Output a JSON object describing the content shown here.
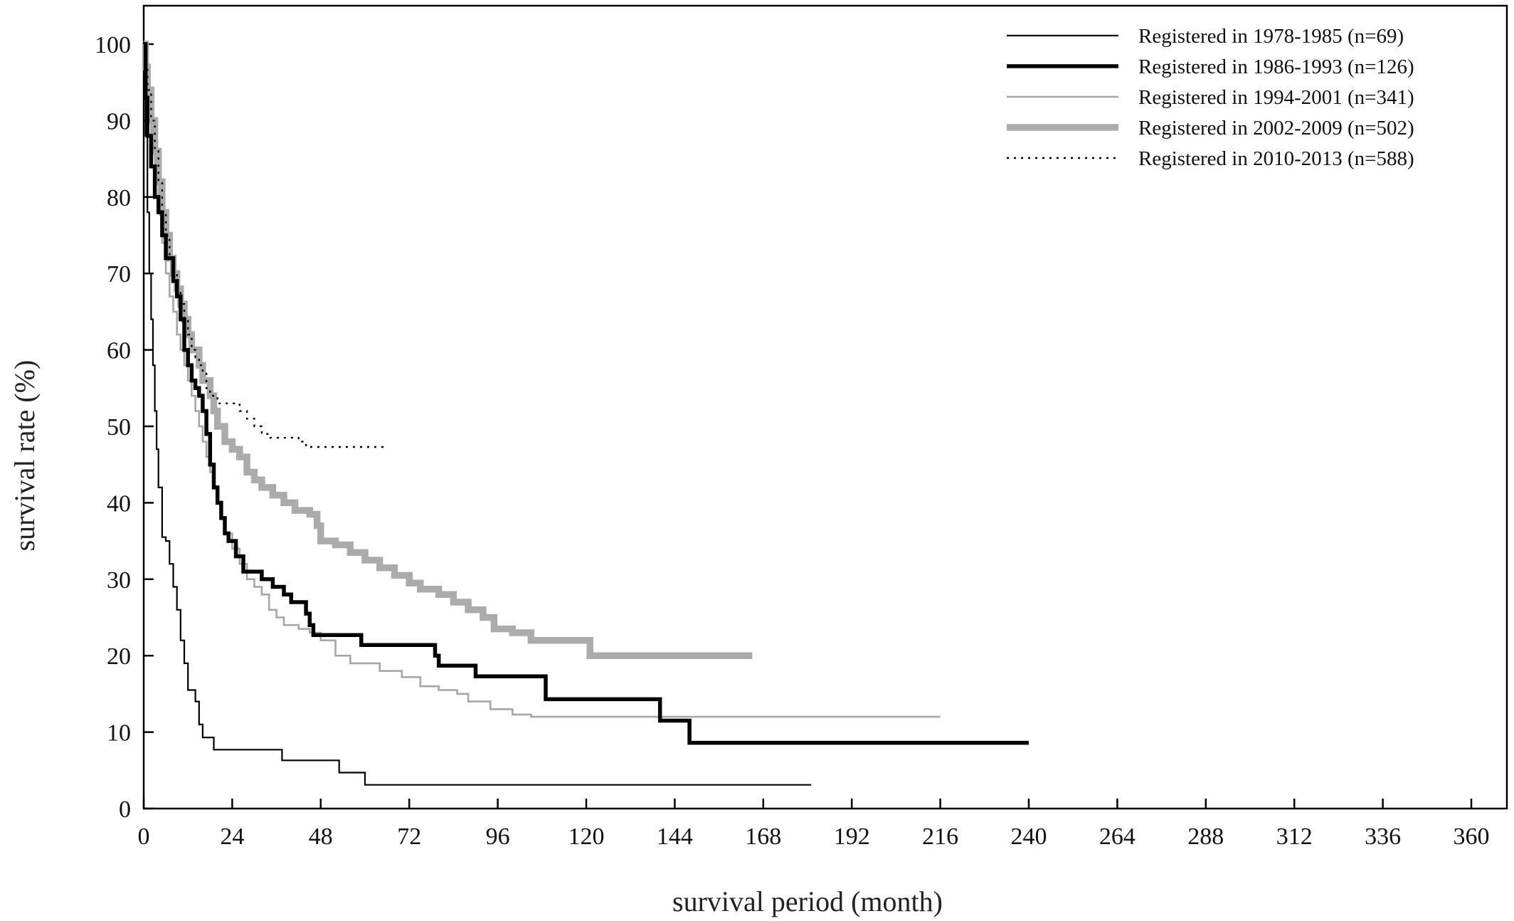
{
  "chart_data": {
    "type": "line",
    "subtype": "kaplan-meier-step",
    "title": "",
    "xlabel": "survival period (month)",
    "ylabel": "survival rate (%)",
    "xlim": [
      0,
      366
    ],
    "ylim": [
      0,
      105
    ],
    "x_ticks": [
      0,
      24,
      48,
      72,
      96,
      120,
      144,
      168,
      192,
      216,
      240,
      264,
      288,
      312,
      336,
      360
    ],
    "y_ticks": [
      0,
      10,
      20,
      30,
      40,
      50,
      60,
      70,
      80,
      90,
      100
    ],
    "grid": false,
    "legend_position": "top-right",
    "series": [
      {
        "name": "Registered in 1978-1985 (n=69)",
        "style": "thin-black",
        "color": "#000000",
        "points": [
          [
            0,
            100
          ],
          [
            0.5,
            88
          ],
          [
            1,
            78
          ],
          [
            1.5,
            70
          ],
          [
            2,
            64
          ],
          [
            2.5,
            58
          ],
          [
            3,
            52
          ],
          [
            3.5,
            47
          ],
          [
            4,
            42
          ],
          [
            5,
            35.5
          ],
          [
            6,
            35
          ],
          [
            7,
            32
          ],
          [
            8,
            29
          ],
          [
            9,
            26
          ],
          [
            10,
            22
          ],
          [
            11,
            19
          ],
          [
            12,
            15.5
          ],
          [
            14,
            14
          ],
          [
            15,
            11
          ],
          [
            16,
            9.3
          ],
          [
            18,
            9.3
          ],
          [
            19,
            7.7
          ],
          [
            37,
            7.7
          ],
          [
            37.5,
            6.3
          ],
          [
            52,
            6.3
          ],
          [
            53,
            4.7
          ],
          [
            59,
            4.7
          ],
          [
            60,
            3.1
          ],
          [
            181,
            3.1
          ]
        ]
      },
      {
        "name": "Registered in 1986-1993 (n=126)",
        "style": "thick-black",
        "color": "#000000",
        "points": [
          [
            0,
            100
          ],
          [
            0.5,
            93
          ],
          [
            1,
            88
          ],
          [
            2,
            84
          ],
          [
            3,
            80
          ],
          [
            4,
            78
          ],
          [
            5,
            75
          ],
          [
            6,
            72
          ],
          [
            8,
            69
          ],
          [
            9,
            67
          ],
          [
            10,
            64
          ],
          [
            11,
            60
          ],
          [
            12,
            58
          ],
          [
            13,
            56
          ],
          [
            14,
            55
          ],
          [
            15,
            54
          ],
          [
            16,
            52
          ],
          [
            17,
            49
          ],
          [
            18,
            45
          ],
          [
            19,
            42
          ],
          [
            20,
            40
          ],
          [
            21,
            38
          ],
          [
            22,
            36
          ],
          [
            23,
            35
          ],
          [
            25,
            33
          ],
          [
            27,
            31
          ],
          [
            31,
            31
          ],
          [
            32,
            30
          ],
          [
            35,
            29
          ],
          [
            37,
            29
          ],
          [
            38,
            28
          ],
          [
            40,
            27
          ],
          [
            43,
            27
          ],
          [
            44,
            25.5
          ],
          [
            45,
            24
          ],
          [
            46,
            22.7
          ],
          [
            58,
            22.7
          ],
          [
            59,
            21.4
          ],
          [
            78,
            21.4
          ],
          [
            79,
            20
          ],
          [
            80,
            18.7
          ],
          [
            89,
            18.7
          ],
          [
            90,
            17.3
          ],
          [
            108,
            17.3
          ],
          [
            109,
            14.3
          ],
          [
            139,
            14.3
          ],
          [
            140,
            11.5
          ],
          [
            147,
            11.5
          ],
          [
            148,
            8.6
          ],
          [
            240,
            8.6
          ]
        ]
      },
      {
        "name": "Registered in 1994-2001 (n=341)",
        "style": "thin-gray",
        "color": "#a6a6a6",
        "points": [
          [
            0,
            100
          ],
          [
            0.5,
            95
          ],
          [
            1,
            90
          ],
          [
            2,
            86
          ],
          [
            3,
            82
          ],
          [
            4,
            78
          ],
          [
            5,
            74
          ],
          [
            6,
            70
          ],
          [
            7,
            67
          ],
          [
            8,
            65
          ],
          [
            9,
            62
          ],
          [
            10,
            60
          ],
          [
            11,
            58
          ],
          [
            12,
            56
          ],
          [
            13,
            54
          ],
          [
            14,
            52
          ],
          [
            15,
            50
          ],
          [
            16,
            48
          ],
          [
            17,
            46
          ],
          [
            18,
            44
          ],
          [
            19,
            42
          ],
          [
            20,
            40
          ],
          [
            21,
            38
          ],
          [
            22,
            36
          ],
          [
            24,
            34
          ],
          [
            26,
            32
          ],
          [
            28,
            30
          ],
          [
            30,
            29
          ],
          [
            32,
            28
          ],
          [
            34,
            26
          ],
          [
            36,
            25
          ],
          [
            38,
            24
          ],
          [
            42,
            23.5
          ],
          [
            45,
            23
          ],
          [
            48,
            22
          ],
          [
            52,
            20
          ],
          [
            56,
            19
          ],
          [
            64,
            18
          ],
          [
            70,
            17.2
          ],
          [
            75,
            16
          ],
          [
            80,
            15.5
          ],
          [
            85,
            15
          ],
          [
            88,
            14
          ],
          [
            94,
            13
          ],
          [
            100,
            12.3
          ],
          [
            105,
            12
          ],
          [
            216,
            12
          ]
        ]
      },
      {
        "name": "Registered in 2002-2009 (n=502)",
        "style": "thick-gray",
        "color": "#ababab",
        "points": [
          [
            0,
            100
          ],
          [
            0.5,
            97
          ],
          [
            1,
            94
          ],
          [
            2,
            90
          ],
          [
            3,
            86
          ],
          [
            4,
            82
          ],
          [
            5,
            78
          ],
          [
            6,
            75
          ],
          [
            7,
            72
          ],
          [
            8,
            70
          ],
          [
            9,
            68
          ],
          [
            10,
            66
          ],
          [
            11,
            64
          ],
          [
            12,
            62
          ],
          [
            13,
            60
          ],
          [
            15,
            58
          ],
          [
            16,
            56
          ],
          [
            18,
            54
          ],
          [
            19,
            52
          ],
          [
            20,
            50
          ],
          [
            22,
            48
          ],
          [
            24,
            47
          ],
          [
            26,
            46
          ],
          [
            28,
            44
          ],
          [
            30,
            43
          ],
          [
            32,
            42
          ],
          [
            35,
            41
          ],
          [
            38,
            40
          ],
          [
            41,
            39
          ],
          [
            45,
            38.5
          ],
          [
            47,
            37
          ],
          [
            48,
            35
          ],
          [
            52,
            34.5
          ],
          [
            56,
            33.5
          ],
          [
            60,
            32.5
          ],
          [
            64,
            31.5
          ],
          [
            68,
            30.5
          ],
          [
            72,
            29.5
          ],
          [
            75,
            28.7
          ],
          [
            80,
            28
          ],
          [
            84,
            27
          ],
          [
            88,
            26
          ],
          [
            92,
            25
          ],
          [
            95,
            23.5
          ],
          [
            100,
            23
          ],
          [
            105,
            22
          ],
          [
            120,
            22
          ],
          [
            121,
            20
          ],
          [
            165,
            20
          ]
        ]
      },
      {
        "name": "Registered in 2010-2013 (n=588)",
        "style": "dotted-black",
        "color": "#000000",
        "points": [
          [
            0,
            100
          ],
          [
            0.5,
            97
          ],
          [
            1,
            94
          ],
          [
            2,
            90
          ],
          [
            3,
            86
          ],
          [
            4,
            82
          ],
          [
            5,
            78
          ],
          [
            6,
            75
          ],
          [
            7,
            72
          ],
          [
            8,
            70
          ],
          [
            9,
            68
          ],
          [
            10,
            66
          ],
          [
            11,
            64
          ],
          [
            12,
            62
          ],
          [
            13,
            60
          ],
          [
            14,
            59
          ],
          [
            15,
            58
          ],
          [
            16,
            57
          ],
          [
            17,
            55
          ],
          [
            18,
            54
          ],
          [
            20,
            53
          ],
          [
            24,
            53
          ],
          [
            26,
            52
          ],
          [
            28,
            51
          ],
          [
            30,
            50
          ],
          [
            32,
            49
          ],
          [
            34,
            48.5
          ],
          [
            40,
            48.5
          ],
          [
            42,
            48
          ],
          [
            44,
            47.3
          ],
          [
            46,
            47.3
          ],
          [
            48,
            47.3
          ],
          [
            50,
            47.3
          ],
          [
            52,
            47.3
          ],
          [
            54,
            47.3
          ],
          [
            56,
            47.3
          ],
          [
            58,
            47.3
          ],
          [
            60,
            47.3
          ],
          [
            62,
            47.3
          ],
          [
            64,
            47.3
          ],
          [
            66,
            47.3
          ]
        ]
      }
    ]
  }
}
